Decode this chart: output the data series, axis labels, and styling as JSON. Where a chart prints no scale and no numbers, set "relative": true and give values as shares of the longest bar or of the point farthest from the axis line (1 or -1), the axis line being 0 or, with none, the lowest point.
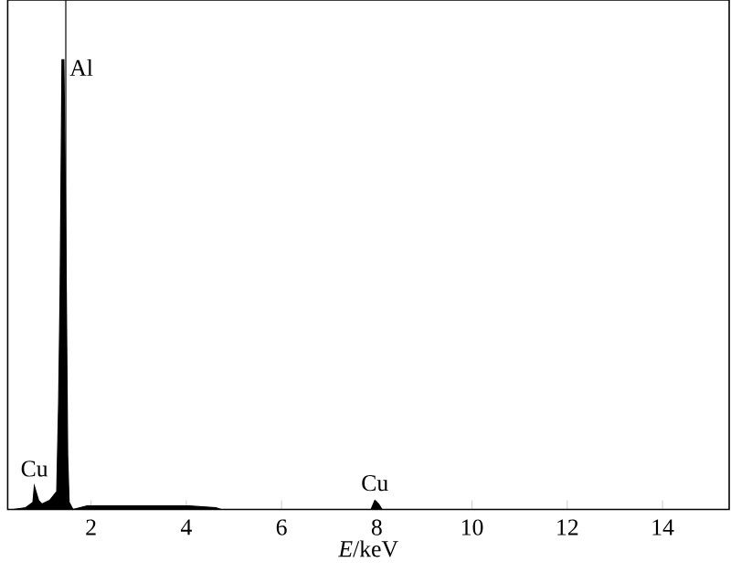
{
  "chart_data": {
    "type": "area",
    "relative": true,
    "xlabel": "*E*/keV",
    "tick_labels": "x",
    "xlim": [
      0.25,
      15.4
    ],
    "xticks": [
      2,
      4,
      6,
      8,
      10,
      12,
      14
    ],
    "x": [
      0.37,
      0.63,
      0.78,
      0.81,
      0.9,
      0.97,
      1.13,
      1.28,
      1.32,
      1.35,
      1.39,
      1.43,
      1.47,
      1.51,
      1.54,
      1.62,
      1.92,
      2.72,
      4.05,
      4.62,
      4.73,
      7.88,
      7.96,
      8.04,
      8.11,
      15.4
    ],
    "values": [
      0,
      0.004,
      0.016,
      0.052,
      0.02,
      0.012,
      0.02,
      0.04,
      0.24,
      0.48,
      1.0,
      1.0,
      0.62,
      0.12,
      0.016,
      0,
      0.008,
      0.008,
      0.008,
      0.004,
      0,
      0,
      0.02,
      0.012,
      0,
      0
    ],
    "color": "#000000",
    "ref_lines": [
      {
        "axis": "x",
        "value": 1.47,
        "color": "#000000"
      }
    ],
    "annotations": [
      {
        "text": "Al",
        "x": 1.43,
        "y": 1.0
      },
      {
        "text": "Cu",
        "x": 0.81,
        "y": 0.052
      },
      {
        "text": "Cu",
        "x": 7.96,
        "y": 0.02
      }
    ]
  }
}
